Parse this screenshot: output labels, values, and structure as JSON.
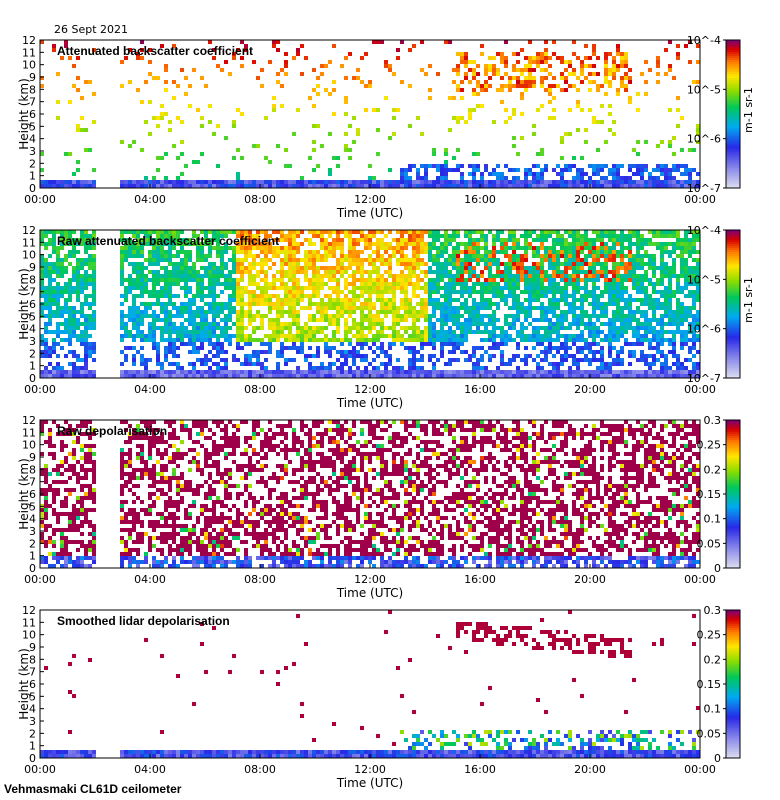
{
  "figure": {
    "date": "26 Sept 2021",
    "footer": "Vehmasmaki CL61D ceilometer"
  },
  "chart_data": [
    {
      "type": "heatmap",
      "title": "Attenuated backscatter coefficient",
      "xlabel": "Time (UTC)",
      "ylabel": "Height (km)",
      "xticks": [
        "00:00",
        "04:00",
        "08:00",
        "12:00",
        "16:00",
        "20:00",
        "00:00"
      ],
      "xlim_hours": [
        0,
        24
      ],
      "ylim": [
        0,
        12
      ],
      "yticks": [
        0,
        1,
        2,
        3,
        4,
        5,
        6,
        7,
        8,
        9,
        10,
        11,
        12
      ],
      "data_gap_hours": [
        1.9,
        2.85
      ],
      "colorbar": {
        "scale": "log",
        "range": [
          1e-07,
          0.0001
        ],
        "ticks": [
          "10^-4",
          "10^-5",
          "10^-6",
          "10^-7"
        ],
        "label": "m-1 sr-1"
      },
      "features": [
        {
          "name": "boundary layer",
          "time_hours": [
            0,
            24
          ],
          "height_km": [
            0,
            1.0
          ],
          "level": "low"
        },
        {
          "name": "elevated aerosol layer",
          "time_hours": [
            13,
            24
          ],
          "height_km": [
            0.5,
            2.2
          ],
          "level": "low"
        },
        {
          "name": "cirrus cloud",
          "time_hours": [
            15.0,
            21.5
          ],
          "height_km": [
            8.0,
            11.2
          ],
          "level": "high"
        }
      ]
    },
    {
      "type": "heatmap",
      "title": "Raw attenuated backscatter coefficient",
      "xlabel": "Time (UTC)",
      "ylabel": "Height (km)",
      "xticks": [
        "00:00",
        "04:00",
        "08:00",
        "12:00",
        "16:00",
        "20:00",
        "00:00"
      ],
      "xlim_hours": [
        0,
        24
      ],
      "ylim": [
        0,
        12
      ],
      "yticks": [
        0,
        1,
        2,
        3,
        4,
        5,
        6,
        7,
        8,
        9,
        10,
        11,
        12
      ],
      "data_gap_hours": [
        1.9,
        2.85
      ],
      "colorbar": {
        "scale": "log",
        "range": [
          1e-07,
          0.0001
        ],
        "ticks": [
          "10^-4",
          "10^-5",
          "10^-6",
          "10^-7"
        ],
        "label": "m-1 sr-1"
      },
      "features": [
        {
          "name": "noise dominated upper region",
          "time_hours": [
            0,
            24
          ],
          "height_km": [
            2,
            12
          ],
          "level": "mid"
        },
        {
          "name": "daytime solar noise",
          "time_hours": [
            8,
            14
          ],
          "height_km": [
            5,
            12
          ],
          "level": "high"
        },
        {
          "name": "cirrus cloud",
          "time_hours": [
            15.0,
            21.5
          ],
          "height_km": [
            8.0,
            11.2
          ],
          "level": "high"
        }
      ]
    },
    {
      "type": "heatmap",
      "title": "Raw depolarisation",
      "xlabel": "Time (UTC)",
      "ylabel": "Height (km)",
      "xticks": [
        "00:00",
        "04:00",
        "08:00",
        "12:00",
        "16:00",
        "20:00",
        "00:00"
      ],
      "xlim_hours": [
        0,
        24
      ],
      "ylim": [
        0,
        12
      ],
      "yticks": [
        0,
        1,
        2,
        3,
        4,
        5,
        6,
        7,
        8,
        9,
        10,
        11,
        12
      ],
      "data_gap_hours": [
        1.9,
        2.85
      ],
      "colorbar": {
        "scale": "linear",
        "range": [
          0,
          0.3
        ],
        "ticks": [
          "0.3",
          "0.25",
          "0.2",
          "0.15",
          "0.1",
          "0.05",
          "0"
        ]
      },
      "features": [
        {
          "name": "noise (saturated values)",
          "time_hours": [
            0,
            24
          ],
          "height_km": [
            1,
            12
          ],
          "level": "high"
        },
        {
          "name": "aerosol layer",
          "time_hours": [
            13,
            24
          ],
          "height_km": [
            0,
            1
          ],
          "level": "low"
        }
      ]
    },
    {
      "type": "heatmap",
      "title": "Smoothed lidar depolarisation",
      "xlabel": "Time (UTC)",
      "ylabel": "Height (km)",
      "xticks": [
        "00:00",
        "04:00",
        "08:00",
        "12:00",
        "16:00",
        "20:00",
        "00:00"
      ],
      "xlim_hours": [
        0,
        24
      ],
      "ylim": [
        0,
        12
      ],
      "yticks": [
        0,
        1,
        2,
        3,
        4,
        5,
        6,
        7,
        8,
        9,
        10,
        11,
        12
      ],
      "data_gap_hours": [
        1.9,
        2.85
      ],
      "colorbar": {
        "scale": "linear",
        "range": [
          0,
          0.3
        ],
        "ticks": [
          "0.3",
          "0.25",
          "0.2",
          "0.15",
          "0.1",
          "0.05",
          "0"
        ]
      },
      "features": [
        {
          "name": "aerosol layer",
          "time_hours": [
            13,
            24
          ],
          "height_km": [
            0,
            2.5
          ],
          "level": "low"
        },
        {
          "name": "cirrus cloud (high depolarisation)",
          "time_hours": [
            15.0,
            21.5
          ],
          "height_km": [
            8.0,
            11.2
          ],
          "level": "high"
        }
      ]
    }
  ]
}
